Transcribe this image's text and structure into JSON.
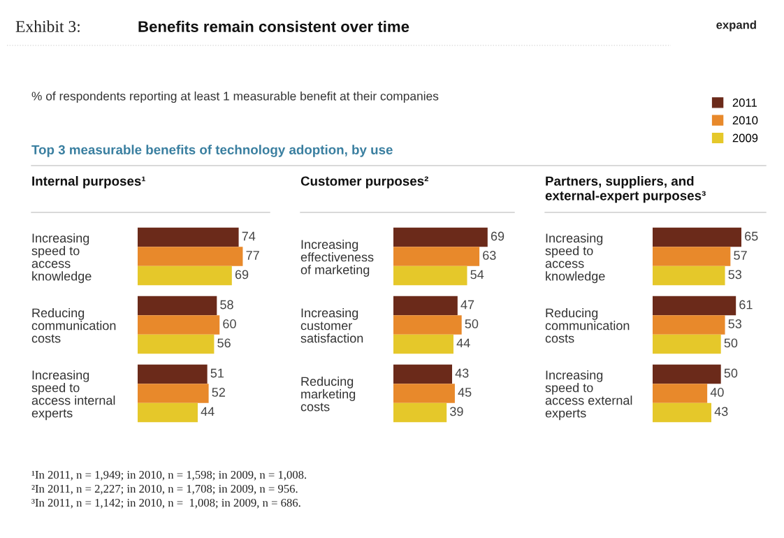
{
  "chart_data": [
    {
      "type": "bar",
      "orientation": "horizontal",
      "title": "Internal purposes¹",
      "data_labels": true,
      "legend": "top right",
      "annotations": [
        "Exhibit 3:",
        "Benefits remain consistent over time",
        "expand",
        "% of respondents reporting at least 1 measurable benefit at their companies",
        "Top 3 measurable benefits of technology adoption, by use",
        "¹In 2011, n = 1,949; in 2010, n = 1,598; in 2009, n = 1,008.",
        "²In 2011, n = 2,227; in 2010, n = 1,708; in 2009, n = 956.",
        "³In 2011, n = 1,142; in 2010, n =  1,008; in 2009, n = 686."
      ],
      "categories": [
        "Increasing\nspeed to\naccess\nknowledge",
        "Reducing\ncommunication\ncosts",
        "Increasing\nspeed to\naccess internal\nexperts"
      ],
      "series": [
        {
          "name": "2011",
          "color": "#6b2a1a",
          "values": [
            74,
            58,
            51
          ]
        },
        {
          "name": "2010",
          "color": "#e8892b",
          "values": [
            77,
            60,
            52
          ]
        },
        {
          "name": "2009",
          "color": "#e5c82a",
          "values": [
            69,
            56,
            44
          ]
        }
      ]
    },
    {
      "type": "bar",
      "orientation": "horizontal",
      "title": "Customer purposes²",
      "data_labels": true,
      "categories": [
        "Increasing\neffectiveness\nof marketing",
        "Increasing\ncustomer\nsatisfaction",
        "Reducing\nmarketing\ncosts"
      ],
      "series": [
        {
          "color": "#6b2a1a",
          "values": [
            69,
            47,
            43
          ]
        },
        {
          "color": "#e8892b",
          "values": [
            63,
            50,
            45
          ]
        },
        {
          "color": "#e5c82a",
          "values": [
            54,
            44,
            39
          ]
        }
      ]
    },
    {
      "type": "bar",
      "orientation": "horizontal",
      "title": "Partners, suppliers, and\nexternal-expert purposes³",
      "data_labels": true,
      "categories": [
        "Increasing\nspeed to\naccess\nknowledge",
        "Reducing\ncommunication\ncosts",
        "Increasing\nspeed to\naccess external\nexperts"
      ],
      "series": [
        {
          "color": "#6b2a1a",
          "values": [
            65,
            61,
            50
          ]
        },
        {
          "color": "#e8892b",
          "values": [
            57,
            53,
            40
          ]
        },
        {
          "color": "#e5c82a",
          "values": [
            53,
            50,
            43
          ]
        }
      ]
    }
  ]
}
